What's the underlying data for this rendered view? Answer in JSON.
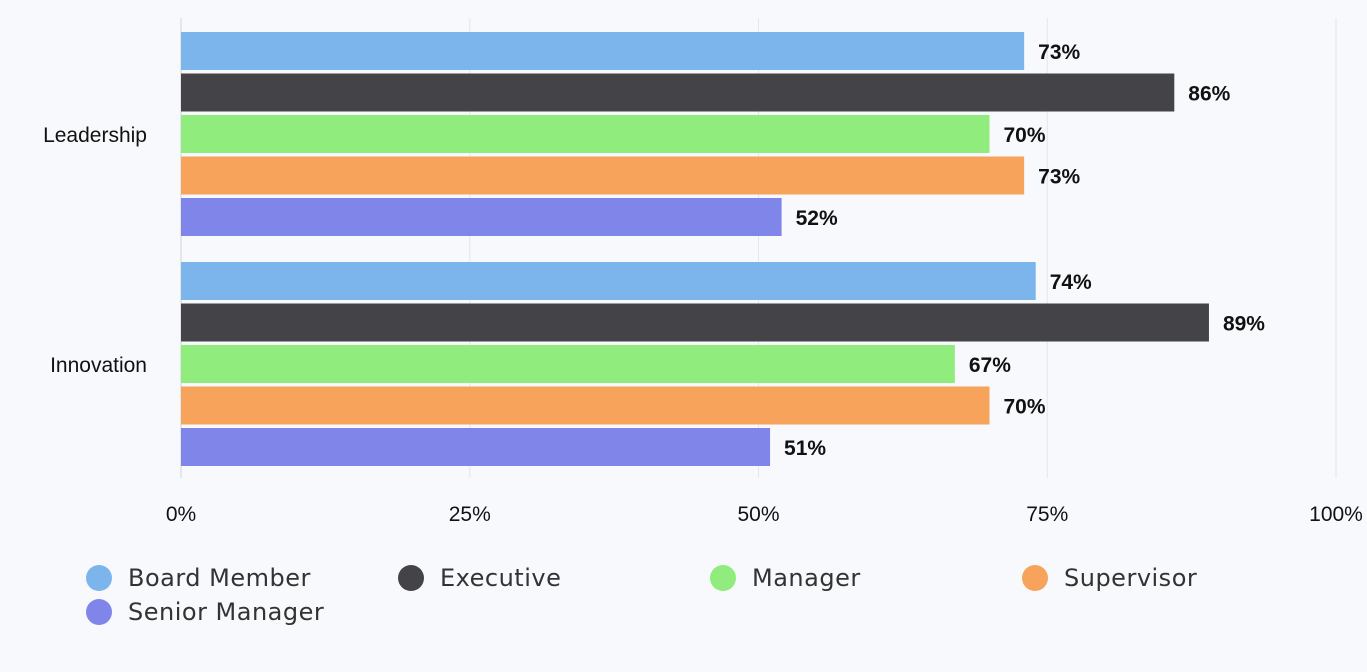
{
  "chart_data": {
    "type": "bar",
    "orientation": "horizontal",
    "categories": [
      "Leadership",
      "Innovation"
    ],
    "series": [
      {
        "name": "Board Member",
        "color": "#7cb5ec",
        "values": [
          73,
          74
        ],
        "labels": [
          "73%",
          "74%"
        ]
      },
      {
        "name": "Executive",
        "color": "#434348",
        "values": [
          86,
          89
        ],
        "labels": [
          "86%",
          "89%"
        ]
      },
      {
        "name": "Manager",
        "color": "#90ed7d",
        "values": [
          70,
          67
        ],
        "labels": [
          "70%",
          "67%"
        ]
      },
      {
        "name": "Supervisor",
        "color": "#f7a35c",
        "values": [
          73,
          70
        ],
        "labels": [
          "73%",
          "70%"
        ]
      },
      {
        "name": "Senior Manager",
        "color": "#8085e9",
        "values": [
          52,
          51
        ],
        "labels": [
          "52%",
          "51%"
        ]
      }
    ],
    "xlim": [
      0,
      100
    ],
    "xticks": [
      0,
      25,
      50,
      75,
      100
    ],
    "xtick_labels": [
      "0%",
      "25%",
      "50%",
      "75%",
      "100%"
    ],
    "grid": true,
    "legend_position": "bottom"
  }
}
